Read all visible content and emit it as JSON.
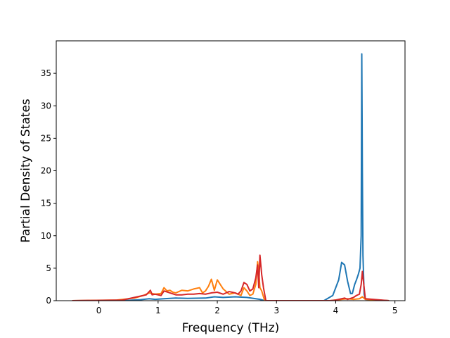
{
  "chart_data": {
    "type": "line",
    "title": "",
    "xlabel": "Frequency (THz)",
    "ylabel": "Partial Density of States",
    "xlim": [
      -0.72,
      5.17
    ],
    "ylim": [
      0,
      40.0
    ],
    "x_ticks": [
      0,
      1,
      2,
      3,
      4,
      5
    ],
    "y_ticks": [
      0,
      5,
      10,
      15,
      20,
      25,
      30,
      35
    ],
    "x_tick_labels": [
      "0",
      "1",
      "2",
      "3",
      "4",
      "5"
    ],
    "y_tick_labels": [
      "0",
      "5",
      "10",
      "15",
      "20",
      "25",
      "30",
      "35"
    ],
    "grid": false,
    "legend": "none",
    "series": [
      {
        "color": "#1f77b4",
        "x": [
          -0.45,
          0.5,
          0.7,
          0.85,
          0.95,
          1.1,
          1.3,
          1.5,
          1.8,
          1.95,
          2.1,
          2.3,
          2.5,
          2.65,
          2.72,
          2.8,
          3.2,
          3.8,
          3.95,
          4.05,
          4.1,
          4.15,
          4.2,
          4.25,
          4.28,
          4.32,
          4.35,
          4.38,
          4.41,
          4.43,
          4.44,
          4.45,
          4.46,
          4.48,
          4.5,
          4.9
        ],
        "y": [
          0,
          0.05,
          0.15,
          0.3,
          0.2,
          0.3,
          0.4,
          0.35,
          0.4,
          0.6,
          0.5,
          0.6,
          0.5,
          0.3,
          0.2,
          0,
          0,
          0,
          0.8,
          3.2,
          5.9,
          5.5,
          3.0,
          1.1,
          1.1,
          2.5,
          3.2,
          4.0,
          5.0,
          10.0,
          38.0,
          20.0,
          7.0,
          1.0,
          0.2,
          0
        ]
      },
      {
        "color": "#ff7f0e",
        "x": [
          -0.45,
          0.3,
          0.6,
          0.75,
          0.85,
          0.95,
          1.05,
          1.1,
          1.15,
          1.2,
          1.25,
          1.3,
          1.4,
          1.5,
          1.6,
          1.7,
          1.75,
          1.8,
          1.85,
          1.9,
          1.95,
          2.0,
          2.05,
          2.1,
          2.2,
          2.3,
          2.4,
          2.45,
          2.5,
          2.55,
          2.6,
          2.65,
          2.68,
          2.7,
          2.72,
          2.75,
          2.8,
          3.2,
          3.9,
          4.1,
          4.2,
          4.3,
          4.4,
          4.45,
          4.5,
          4.9
        ],
        "y": [
          0,
          0.1,
          0.4,
          0.8,
          1.2,
          1.0,
          1.1,
          2.0,
          1.5,
          1.6,
          1.3,
          1.2,
          1.6,
          1.5,
          1.8,
          2.0,
          1.2,
          1.5,
          2.2,
          3.3,
          1.6,
          3.2,
          2.5,
          1.8,
          1.0,
          1.2,
          0.8,
          2.0,
          1.5,
          0.8,
          1.0,
          2.5,
          6.0,
          4.5,
          2.0,
          1.5,
          0,
          0,
          0,
          0.2,
          0.3,
          0.2,
          0.3,
          0.6,
          0.2,
          0
        ]
      },
      {
        "color": "#d62728",
        "x": [
          -0.45,
          0.4,
          0.6,
          0.8,
          0.87,
          0.9,
          0.95,
          1.05,
          1.1,
          1.2,
          1.3,
          1.4,
          1.5,
          1.6,
          1.7,
          1.8,
          1.9,
          2.0,
          2.1,
          2.2,
          2.3,
          2.35,
          2.4,
          2.45,
          2.5,
          2.55,
          2.6,
          2.65,
          2.68,
          2.7,
          2.72,
          2.75,
          2.78,
          2.82,
          3.2,
          3.9,
          4.0,
          4.1,
          4.15,
          4.2,
          4.3,
          4.35,
          4.4,
          4.43,
          4.45,
          4.5,
          4.9
        ],
        "y": [
          0,
          0.1,
          0.5,
          0.9,
          1.6,
          0.9,
          1.0,
          0.8,
          1.5,
          1.2,
          0.9,
          0.9,
          1.0,
          1.0,
          1.1,
          1.0,
          1.2,
          1.3,
          1.0,
          1.4,
          1.2,
          1.0,
          1.5,
          2.8,
          2.5,
          1.5,
          1.8,
          3.5,
          5.5,
          2.0,
          7.0,
          4.0,
          2.0,
          0,
          0,
          0,
          0.1,
          0.3,
          0.4,
          0.2,
          0.5,
          0.8,
          1.0,
          2.5,
          4.5,
          0.3,
          0
        ]
      }
    ]
  }
}
